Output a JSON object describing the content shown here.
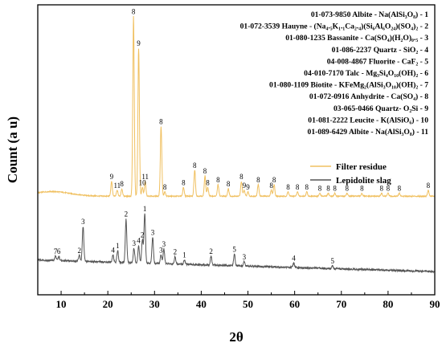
{
  "chart_data": {
    "type": "line",
    "title": "",
    "xlabel": "2θ",
    "ylabel": "Count (a u)",
    "xlim": [
      5,
      90
    ],
    "ylim": [
      0,
      100
    ],
    "xticks": [
      10,
      20,
      30,
      40,
      50,
      60,
      70,
      80,
      90
    ],
    "y_tick_labels_shown": false,
    "grid": false,
    "legend_position": "upper-right",
    "reference_cards": [
      "01-073-9850 Albite - Na(AlSi₃O₈) - 1",
      "01-072-3539 Hauyne - (Na₄.₅K₁.₁Ca₂.₄)(Si₆Al₆O₂₄)(SO₄)₂ - 2",
      "01-080-1235 Bassanite - Ca(SO₄)(H₂O)₀.₅ - 3",
      "01-086-2237 Quartz - SiO₂ - 4",
      "04-008-4867 Fluorite - CaF₂ - 5",
      "04-010-7170 Talc - Mg₃Si₄O₁₀(OH)₂ - 6",
      "01-080-1109 Biotite - KFeMg₂(AlSi₃O₁₀)(OH)₂ - 7",
      "01-072-0916 Anhydrite - Ca(SO₄) - 8",
      "03-065-0466 Quartz- O₂Si - 9",
      "01-081-2222 Leucite - K(AlSiO₆) - 10",
      "01-089-6429 Albite - Na(AlSi₃O₈) - 11"
    ],
    "series": [
      {
        "name": "Filter residue",
        "color": "#f0c060",
        "baseline": 34,
        "peaks": [
          {
            "x": 20.8,
            "h": 5,
            "label": "9"
          },
          {
            "x": 22.0,
            "h": 2,
            "label": "11"
          },
          {
            "x": 23.0,
            "h": 2.5,
            "label": "8"
          },
          {
            "x": 25.5,
            "h": 62,
            "label": "8"
          },
          {
            "x": 26.6,
            "h": 51,
            "label": "9"
          },
          {
            "x": 27.4,
            "h": 3,
            "label": "10"
          },
          {
            "x": 28.0,
            "h": 5,
            "label": "11"
          },
          {
            "x": 31.4,
            "h": 24,
            "label": "8"
          },
          {
            "x": 32.2,
            "h": 1.5,
            "label": "8"
          },
          {
            "x": 36.2,
            "h": 3,
            "label": "8"
          },
          {
            "x": 38.6,
            "h": 9,
            "label": "8"
          },
          {
            "x": 40.8,
            "h": 7,
            "label": "8"
          },
          {
            "x": 41.4,
            "h": 3,
            "label": "8"
          },
          {
            "x": 43.6,
            "h": 4,
            "label": "8"
          },
          {
            "x": 45.8,
            "h": 2.5,
            "label": "8"
          },
          {
            "x": 48.6,
            "h": 5,
            "label": "8"
          },
          {
            "x": 49.2,
            "h": 2,
            "label": "9"
          },
          {
            "x": 50.0,
            "h": 1.5,
            "label": "9"
          },
          {
            "x": 52.2,
            "h": 4,
            "label": "8"
          },
          {
            "x": 55.0,
            "h": 2,
            "label": "8"
          },
          {
            "x": 55.6,
            "h": 4,
            "label": "8"
          },
          {
            "x": 58.6,
            "h": 1.5,
            "label": "8"
          },
          {
            "x": 60.6,
            "h": 1.5,
            "label": "8"
          },
          {
            "x": 62.6,
            "h": 1.5,
            "label": "8"
          },
          {
            "x": 65.4,
            "h": 1,
            "label": "8"
          },
          {
            "x": 67.2,
            "h": 1,
            "label": "8"
          },
          {
            "x": 68.6,
            "h": 1,
            "label": "8"
          },
          {
            "x": 71.2,
            "h": 1,
            "label": "8"
          },
          {
            "x": 74.4,
            "h": 1,
            "label": "8"
          },
          {
            "x": 78.6,
            "h": 1,
            "label": "8"
          },
          {
            "x": 80.0,
            "h": 1,
            "label": "8"
          },
          {
            "x": 82.4,
            "h": 1,
            "label": "8"
          },
          {
            "x": 88.6,
            "h": 2,
            "label": "8"
          }
        ]
      },
      {
        "name": "Lepidolite slag",
        "color": "#555555",
        "baseline": 12,
        "baseline_slope": -4,
        "peaks": [
          {
            "x": 8.8,
            "h": 1.5,
            "label": "7"
          },
          {
            "x": 9.5,
            "h": 1.5,
            "label": "6"
          },
          {
            "x": 13.9,
            "h": 2,
            "label": "2"
          },
          {
            "x": 14.7,
            "h": 12,
            "label": "3"
          },
          {
            "x": 21.1,
            "h": 2.5,
            "label": "4"
          },
          {
            "x": 22.1,
            "h": 4,
            "label": "1"
          },
          {
            "x": 23.9,
            "h": 15,
            "label": "2"
          },
          {
            "x": 25.6,
            "h": 5,
            "label": "3"
          },
          {
            "x": 26.6,
            "h": 6,
            "label": "4"
          },
          {
            "x": 27.4,
            "h": 8,
            "label": "2"
          },
          {
            "x": 27.9,
            "h": 17,
            "label": "1"
          },
          {
            "x": 29.6,
            "h": 9,
            "label": "3"
          },
          {
            "x": 31.4,
            "h": 3,
            "label": "3"
          },
          {
            "x": 32.0,
            "h": 5,
            "label": "3"
          },
          {
            "x": 34.4,
            "h": 2.5,
            "label": "2"
          },
          {
            "x": 36.4,
            "h": 1.5,
            "label": "1"
          },
          {
            "x": 42.1,
            "h": 3,
            "label": "2"
          },
          {
            "x": 47.1,
            "h": 4,
            "label": "5"
          },
          {
            "x": 49.2,
            "h": 1.5,
            "label": "3"
          },
          {
            "x": 59.8,
            "h": 1.5,
            "label": "4"
          },
          {
            "x": 68.1,
            "h": 1,
            "label": "5"
          }
        ]
      }
    ]
  }
}
